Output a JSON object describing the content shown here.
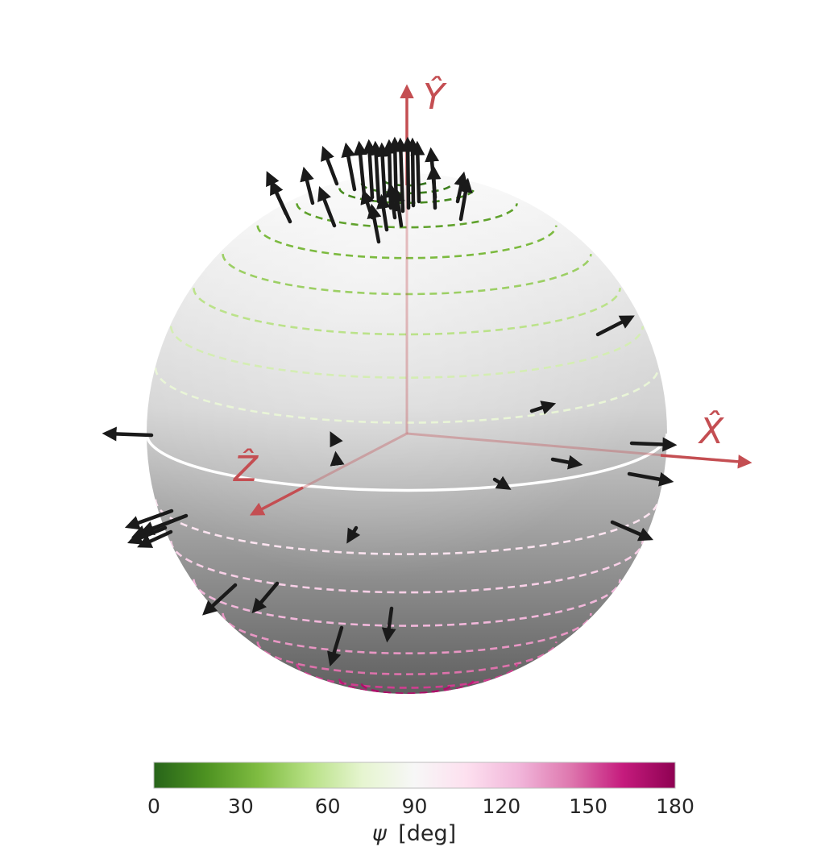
{
  "axes": {
    "x_label": "X̂",
    "y_label": "Ŷ",
    "z_label": "Ẑ",
    "color": "#c44e52"
  },
  "sphere": {
    "shade_top": "#f7f7f7",
    "shade_bottom": "#5f5f5f",
    "equator_color": "#ffffff"
  },
  "colorbar": {
    "label_symbol": "ψ",
    "label_unit": "[deg]",
    "ticks": [
      "0",
      "30",
      "60",
      "90",
      "120",
      "150",
      "180"
    ],
    "vmin": 0,
    "vmax": 180,
    "colormap": "PiYG_r",
    "stops": [
      "#276419",
      "#4d9221",
      "#7fbc41",
      "#b8e186",
      "#e6f5d0",
      "#f7f7f7",
      "#fde0ef",
      "#f1b6da",
      "#de77ae",
      "#c51b7d",
      "#8e0152"
    ]
  },
  "contours": {
    "psi_levels_deg": [
      5,
      10,
      15,
      25,
      35,
      45,
      55,
      65,
      75,
      90,
      105,
      115,
      125,
      135,
      145,
      155,
      165,
      170
    ],
    "style": "dashed",
    "highlight_level_deg": 90
  },
  "arrow_color": "#1a1a1a"
}
